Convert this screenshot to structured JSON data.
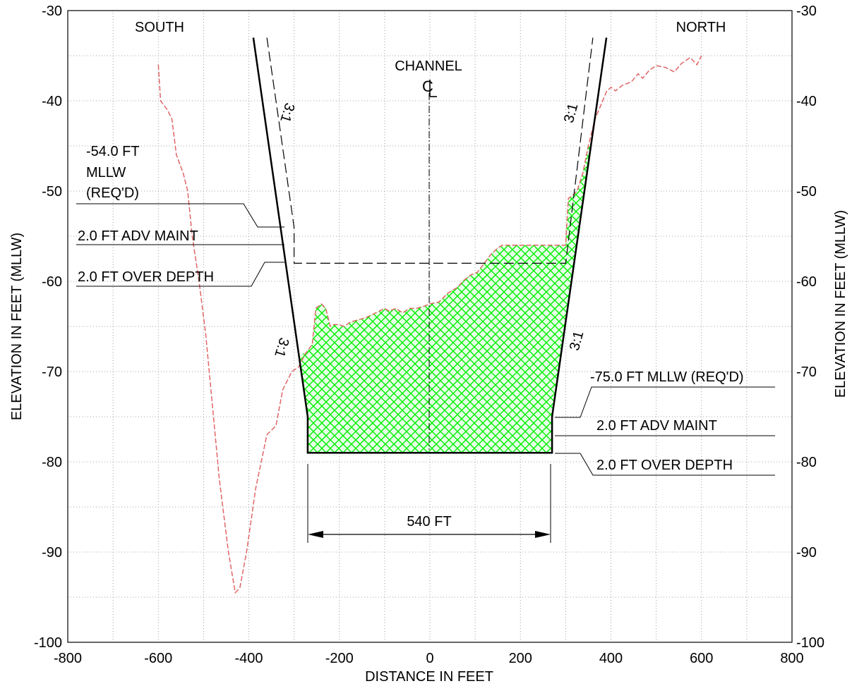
{
  "chart_data": {
    "type": "line",
    "title": "",
    "xlabel": "DISTANCE IN FEET",
    "ylabel": "ELEVATION IN FEET (MLLW)",
    "xlim": [
      -800,
      800
    ],
    "ylim": [
      -100,
      -30
    ],
    "x_ticks": [
      "-800",
      "-600",
      "-400",
      "-200",
      "0",
      "200",
      "400",
      "600",
      "800"
    ],
    "y_ticks": [
      "-30",
      "-40",
      "-50",
      "-60",
      "-70",
      "-80",
      "-90",
      "-100"
    ],
    "grid": "dotted",
    "existing_bottom": [
      [
        -600,
        -36
      ],
      [
        -595,
        -40
      ],
      [
        -580,
        -41
      ],
      [
        -570,
        -42
      ],
      [
        -560,
        -46
      ],
      [
        -545,
        -48
      ],
      [
        -535,
        -50
      ],
      [
        -525,
        -55
      ],
      [
        -510,
        -60
      ],
      [
        -495,
        -66
      ],
      [
        -480,
        -74
      ],
      [
        -465,
        -82
      ],
      [
        -445,
        -90
      ],
      [
        -430,
        -94.5
      ],
      [
        -420,
        -94
      ],
      [
        -405,
        -90
      ],
      [
        -385,
        -83
      ],
      [
        -360,
        -77
      ],
      [
        -340,
        -76
      ],
      [
        -325,
        -72
      ],
      [
        -305,
        -70
      ],
      [
        -290,
        -69.5
      ],
      [
        -275,
        -68
      ],
      [
        -260,
        -67
      ],
      [
        -252,
        -63
      ],
      [
        -240,
        -62.5
      ],
      [
        -230,
        -63
      ],
      [
        -220,
        -65
      ],
      [
        -212,
        -64.8
      ],
      [
        -200,
        -64.8
      ],
      [
        -190,
        -65
      ],
      [
        -175,
        -64.5
      ],
      [
        -160,
        -64.3
      ],
      [
        -140,
        -64
      ],
      [
        -120,
        -63.5
      ],
      [
        -100,
        -63
      ],
      [
        -90,
        -63.3
      ],
      [
        -75,
        -63
      ],
      [
        -60,
        -63.5
      ],
      [
        -45,
        -63
      ],
      [
        -30,
        -63
      ],
      [
        -15,
        -62.8
      ],
      [
        0,
        -62.5
      ],
      [
        20,
        -62.3
      ],
      [
        40,
        -61.3
      ],
      [
        60,
        -60.7
      ],
      [
        75,
        -59.9
      ],
      [
        90,
        -59.3
      ],
      [
        105,
        -59
      ],
      [
        120,
        -58
      ],
      [
        135,
        -57
      ],
      [
        150,
        -56.3
      ],
      [
        160,
        -56
      ],
      [
        200,
        -56
      ],
      [
        245,
        -56
      ],
      [
        297,
        -56
      ],
      [
        300,
        -56
      ],
      [
        302,
        -54
      ],
      [
        306,
        -50.8
      ],
      [
        315,
        -50.5
      ],
      [
        325,
        -50
      ],
      [
        338,
        -48
      ],
      [
        350,
        -45
      ],
      [
        365,
        -42
      ],
      [
        390,
        -39
      ],
      [
        400,
        -38.5
      ],
      [
        410,
        -38.9
      ],
      [
        425,
        -38.3
      ],
      [
        445,
        -37.9
      ],
      [
        460,
        -37
      ],
      [
        470,
        -37.5
      ],
      [
        485,
        -36.6
      ],
      [
        500,
        -36.1
      ],
      [
        520,
        -36.3
      ],
      [
        540,
        -36.8
      ],
      [
        555,
        -35.9
      ],
      [
        575,
        -35.2
      ],
      [
        590,
        -36
      ],
      [
        600,
        -35
      ]
    ],
    "design_channel": [
      [
        -390,
        -33
      ],
      [
        -270,
        -75
      ],
      [
        -270,
        -79
      ],
      [
        270,
        -79
      ],
      [
        270,
        -75
      ],
      [
        390,
        -33
      ]
    ],
    "authorized_channel": [
      [
        -360,
        -33
      ],
      [
        -300,
        -54
      ],
      [
        -300,
        -58
      ],
      [
        300,
        -58
      ],
      [
        360,
        -33
      ]
    ],
    "channel_width_ft": 540,
    "colors": {
      "existing_bottom": "#e06666",
      "dredge_fill": "#00ff00",
      "design_line": "#000000"
    },
    "annotations": {
      "south": "SOUTH",
      "north": "NORTH",
      "channel": "CHANNEL",
      "centerline": "CL",
      "slope_labels": [
        "3:1",
        "3:1",
        "3:1",
        "3:1"
      ],
      "left_callouts": [
        "-54.0 FT",
        "MLLW",
        "(REQ'D)",
        "2.0 FT ADV MAINT",
        "2.0 FT OVER DEPTH"
      ],
      "right_callouts": [
        "-75.0 FT MLLW (REQ'D)",
        "2.0 FT ADV MAINT",
        "2.0 FT OVER DEPTH"
      ],
      "width_label": "540 FT"
    }
  }
}
